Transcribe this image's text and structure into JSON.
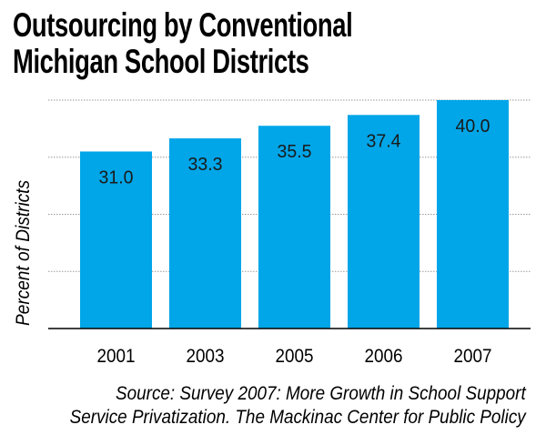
{
  "chart_data": {
    "type": "bar",
    "title": [
      "Outsourcing by Conventional",
      "Michigan School Districts"
    ],
    "xlabel": "",
    "ylabel": "Percent of Districts",
    "categories": [
      "2001",
      "2003",
      "2005",
      "2006",
      "2007"
    ],
    "values": [
      31.0,
      33.3,
      35.5,
      37.4,
      40.0
    ],
    "value_labels": [
      "31.0",
      "33.3",
      "35.5",
      "37.4",
      "40.0"
    ],
    "ylim": [
      0,
      40
    ],
    "gridlines": [
      10,
      20,
      30,
      40
    ],
    "grid": true,
    "bar_color": "#00a6e8",
    "source": [
      "Source: Survey 2007: More Growth in School Support",
      "Service Privatization. The Mackinac Center for Public Policy"
    ]
  }
}
